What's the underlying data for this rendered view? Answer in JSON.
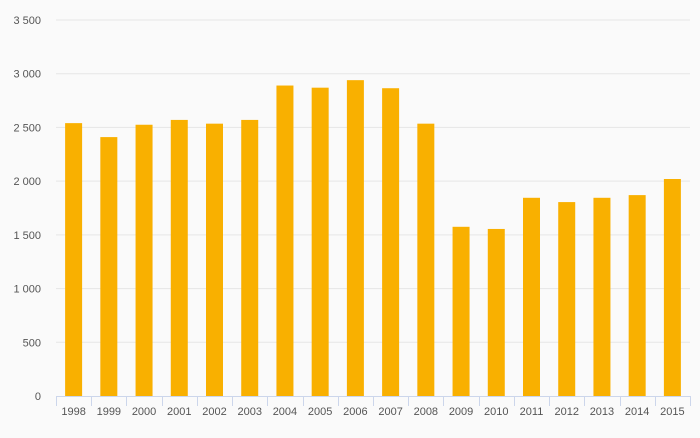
{
  "chart_data": {
    "type": "bar",
    "title": "",
    "xlabel": "",
    "ylabel": "",
    "ylim": [
      0,
      3500
    ],
    "yticks": [
      0,
      500,
      1000,
      1500,
      2000,
      2500,
      3000,
      3500
    ],
    "ytick_labels": [
      "0",
      "500",
      "1 000",
      "1 500",
      "2 000",
      "2 500",
      "3 000",
      "3 500"
    ],
    "grid": true,
    "legend": "none",
    "categories": [
      "1998",
      "1999",
      "2000",
      "2001",
      "2002",
      "2003",
      "2004",
      "2005",
      "2006",
      "2007",
      "2008",
      "2009",
      "2010",
      "2011",
      "2012",
      "2013",
      "2014",
      "2015"
    ],
    "values": [
      2540,
      2410,
      2525,
      2570,
      2535,
      2570,
      2890,
      2870,
      2940,
      2865,
      2535,
      1575,
      1555,
      1845,
      1805,
      1845,
      1870,
      2020
    ],
    "bar_color": "#f9b000"
  }
}
